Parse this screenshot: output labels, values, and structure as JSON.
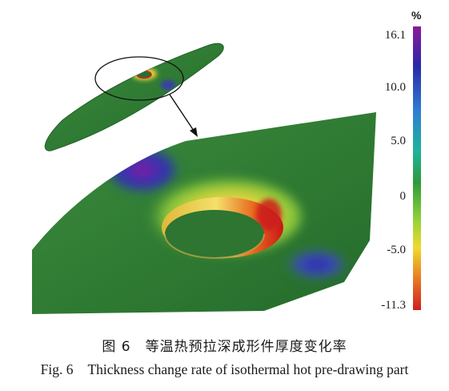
{
  "colorbar": {
    "unit": "%",
    "ticks": [
      "16.1",
      "10.0",
      "5.0",
      "0",
      "-5.0",
      "-11.3"
    ],
    "max": 16.1,
    "min": -11.3,
    "stops": [
      "#8b1a9a",
      "#2a2aa8",
      "#2f7fd2",
      "#1fb39c",
      "#2e9a3a",
      "#8fd23a",
      "#f0d930",
      "#e87a24",
      "#cf1f1f"
    ]
  },
  "part": {
    "base_color": "#2e7a33",
    "rim_color": "#e2d43a",
    "hot_color": "#cc1b1b",
    "thin_color": "#3a2aa6"
  },
  "caption": {
    "zh_label": "图 6",
    "zh_text": "等温热预拉深成形件厚度变化率",
    "en_label": "Fig. 6",
    "en_text": "Thickness change rate of isothermal hot pre-drawing part"
  }
}
